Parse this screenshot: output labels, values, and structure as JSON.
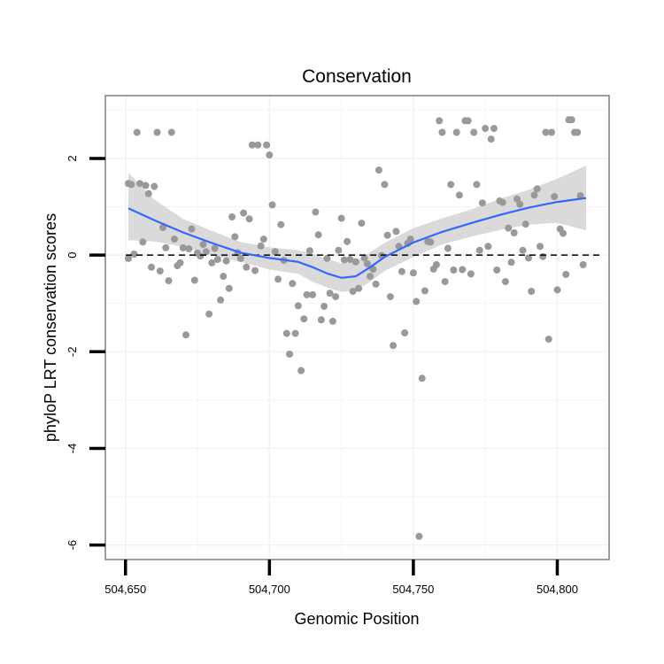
{
  "chart_data": {
    "type": "scatter",
    "title": "Conservation",
    "xlabel": "Genomic Position",
    "ylabel": "phyloP LRT conservation scores",
    "xlim": [
      504643,
      504818
    ],
    "ylim": [
      -6.3,
      3.3
    ],
    "xticks": [
      504650,
      504700,
      504750,
      504800
    ],
    "xtick_labels": [
      "504,650",
      "504,700",
      "504,750",
      "504,800"
    ],
    "yticks": [
      -6,
      -4,
      -2,
      0,
      2
    ],
    "ytick_labels": [
      "-6",
      "-4",
      "-2",
      "0",
      "2"
    ],
    "reference_line": {
      "y": 0,
      "style": "dashed"
    },
    "grid": true,
    "colors": {
      "points": "#999999",
      "smooth_line": "#3366ff",
      "ribbon": "#d3d3d3",
      "panel_border": "#7f7f7f",
      "grid": "#f2f2f2"
    },
    "series": [
      {
        "name": "phyloP",
        "points": [
          {
            "x": 504651,
            "y": -0.07
          },
          {
            "x": 504651,
            "y": 1.48
          },
          {
            "x": 504652,
            "y": 1.46
          },
          {
            "x": 504653,
            "y": 0.02
          },
          {
            "x": 504654,
            "y": 2.54
          },
          {
            "x": 504655,
            "y": 1.48
          },
          {
            "x": 504656,
            "y": 0.27
          },
          {
            "x": 504657,
            "y": 1.44
          },
          {
            "x": 504658,
            "y": 1.27
          },
          {
            "x": 504659,
            "y": -0.25
          },
          {
            "x": 504660,
            "y": 1.42
          },
          {
            "x": 504661,
            "y": 2.54
          },
          {
            "x": 504662,
            "y": -0.33
          },
          {
            "x": 504663,
            "y": 0.57
          },
          {
            "x": 504664,
            "y": 0.15
          },
          {
            "x": 504665,
            "y": -0.53
          },
          {
            "x": 504666,
            "y": 2.54
          },
          {
            "x": 504667,
            "y": 0.33
          },
          {
            "x": 504668,
            "y": -0.22
          },
          {
            "x": 504669,
            "y": -0.16
          },
          {
            "x": 504670,
            "y": 0.15
          },
          {
            "x": 504671,
            "y": -1.65
          },
          {
            "x": 504672,
            "y": 0.13
          },
          {
            "x": 504673,
            "y": 0.54
          },
          {
            "x": 504674,
            "y": -0.52
          },
          {
            "x": 504675,
            "y": 0.04
          },
          {
            "x": 504676,
            "y": -0.02
          },
          {
            "x": 504677,
            "y": 0.22
          },
          {
            "x": 504678,
            "y": 0.07
          },
          {
            "x": 504679,
            "y": -1.22
          },
          {
            "x": 504680,
            "y": -0.16
          },
          {
            "x": 504681,
            "y": 0.14
          },
          {
            "x": 504682,
            "y": -0.09
          },
          {
            "x": 504683,
            "y": -0.93
          },
          {
            "x": 504684,
            "y": -0.44
          },
          {
            "x": 504685,
            "y": -0.12
          },
          {
            "x": 504686,
            "y": -0.69
          },
          {
            "x": 504687,
            "y": 0.79
          },
          {
            "x": 504688,
            "y": 0.38
          },
          {
            "x": 504689,
            "y": 0.05
          },
          {
            "x": 504690,
            "y": -0.07
          },
          {
            "x": 504691,
            "y": 0.87
          },
          {
            "x": 504692,
            "y": -0.25
          },
          {
            "x": 504693,
            "y": 0.75
          },
          {
            "x": 504694,
            "y": 2.28
          },
          {
            "x": 504695,
            "y": -0.32
          },
          {
            "x": 504696,
            "y": 2.28
          },
          {
            "x": 504697,
            "y": 0.19
          },
          {
            "x": 504698,
            "y": 0.33
          },
          {
            "x": 504699,
            "y": 2.28
          },
          {
            "x": 504700,
            "y": 2.07
          },
          {
            "x": 504701,
            "y": 1.04
          },
          {
            "x": 504702,
            "y": 0.07
          },
          {
            "x": 504703,
            "y": -0.5
          },
          {
            "x": 504704,
            "y": 0.63
          },
          {
            "x": 504705,
            "y": -0.11
          },
          {
            "x": 504706,
            "y": -1.62
          },
          {
            "x": 504707,
            "y": -2.05
          },
          {
            "x": 504708,
            "y": -0.59
          },
          {
            "x": 504709,
            "y": -1.62
          },
          {
            "x": 504710,
            "y": -1.05
          },
          {
            "x": 504711,
            "y": -2.39
          },
          {
            "x": 504712,
            "y": -1.32
          },
          {
            "x": 504713,
            "y": -0.82
          },
          {
            "x": 504714,
            "y": 0.09
          },
          {
            "x": 504715,
            "y": -0.82
          },
          {
            "x": 504716,
            "y": 0.89
          },
          {
            "x": 504717,
            "y": 0.42
          },
          {
            "x": 504718,
            "y": -1.34
          },
          {
            "x": 504719,
            "y": -1.06
          },
          {
            "x": 504720,
            "y": -0.07
          },
          {
            "x": 504721,
            "y": -0.79
          },
          {
            "x": 504722,
            "y": -1.37
          },
          {
            "x": 504723,
            "y": -0.86
          },
          {
            "x": 504724,
            "y": 0.1
          },
          {
            "x": 504725,
            "y": 0.76
          },
          {
            "x": 504726,
            "y": -0.1
          },
          {
            "x": 504727,
            "y": 0.28
          },
          {
            "x": 504728,
            "y": -0.09
          },
          {
            "x": 504729,
            "y": -0.75
          },
          {
            "x": 504730,
            "y": -0.14
          },
          {
            "x": 504731,
            "y": -0.69
          },
          {
            "x": 504732,
            "y": 0.66
          },
          {
            "x": 504733,
            "y": -0.06
          },
          {
            "x": 504734,
            "y": -0.18
          },
          {
            "x": 504735,
            "y": -0.44
          },
          {
            "x": 504736,
            "y": -0.29
          },
          {
            "x": 504737,
            "y": -0.6
          },
          {
            "x": 504738,
            "y": 1.76
          },
          {
            "x": 504739,
            "y": -0.01
          },
          {
            "x": 504740,
            "y": 1.46
          },
          {
            "x": 504741,
            "y": 0.41
          },
          {
            "x": 504742,
            "y": -0.86
          },
          {
            "x": 504743,
            "y": -1.87
          },
          {
            "x": 504744,
            "y": 0.49
          },
          {
            "x": 504745,
            "y": 0.18
          },
          {
            "x": 504746,
            "y": -0.34
          },
          {
            "x": 504747,
            "y": -1.61
          },
          {
            "x": 504748,
            "y": 0.24
          },
          {
            "x": 504749,
            "y": 0.33
          },
          {
            "x": 504750,
            "y": -0.37
          },
          {
            "x": 504751,
            "y": -0.96
          },
          {
            "x": 504752,
            "y": -5.82
          },
          {
            "x": 504753,
            "y": -2.55
          },
          {
            "x": 504754,
            "y": -0.74
          },
          {
            "x": 504755,
            "y": 0.28
          },
          {
            "x": 504756,
            "y": 0.27
          },
          {
            "x": 504757,
            "y": -0.29
          },
          {
            "x": 504758,
            "y": -0.2
          },
          {
            "x": 504759,
            "y": 2.78
          },
          {
            "x": 504760,
            "y": 2.54
          },
          {
            "x": 504761,
            "y": -0.55
          },
          {
            "x": 504762,
            "y": 0.14
          },
          {
            "x": 504763,
            "y": 1.46
          },
          {
            "x": 504764,
            "y": -0.31
          },
          {
            "x": 504765,
            "y": 2.54
          },
          {
            "x": 504766,
            "y": 1.24
          },
          {
            "x": 504767,
            "y": -0.3
          },
          {
            "x": 504768,
            "y": 2.78
          },
          {
            "x": 504769,
            "y": 2.78
          },
          {
            "x": 504770,
            "y": -0.39
          },
          {
            "x": 504771,
            "y": 2.54
          },
          {
            "x": 504772,
            "y": 1.46
          },
          {
            "x": 504773,
            "y": 0.1
          },
          {
            "x": 504774,
            "y": 1.08
          },
          {
            "x": 504775,
            "y": 2.62
          },
          {
            "x": 504776,
            "y": 0.18
          },
          {
            "x": 504777,
            "y": 2.4
          },
          {
            "x": 504778,
            "y": 2.62
          },
          {
            "x": 504779,
            "y": -0.31
          },
          {
            "x": 504780,
            "y": 1.12
          },
          {
            "x": 504781,
            "y": 1.09
          },
          {
            "x": 504782,
            "y": -0.55
          },
          {
            "x": 504783,
            "y": 0.56
          },
          {
            "x": 504784,
            "y": -0.15
          },
          {
            "x": 504785,
            "y": 0.46
          },
          {
            "x": 504786,
            "y": 1.16
          },
          {
            "x": 504787,
            "y": 1.05
          },
          {
            "x": 504788,
            "y": 0.1
          },
          {
            "x": 504789,
            "y": 0.64
          },
          {
            "x": 504790,
            "y": -0.06
          },
          {
            "x": 504791,
            "y": -0.75
          },
          {
            "x": 504792,
            "y": 1.24
          },
          {
            "x": 504793,
            "y": 1.37
          },
          {
            "x": 504794,
            "y": 0.18
          },
          {
            "x": 504795,
            "y": -0.03
          },
          {
            "x": 504796,
            "y": 2.54
          },
          {
            "x": 504797,
            "y": -1.74
          },
          {
            "x": 504798,
            "y": 2.54
          },
          {
            "x": 504799,
            "y": 1.21
          },
          {
            "x": 504800,
            "y": -0.72
          },
          {
            "x": 504801,
            "y": 0.54
          },
          {
            "x": 504802,
            "y": 0.45
          },
          {
            "x": 504803,
            "y": -0.4
          },
          {
            "x": 504804,
            "y": 2.8
          },
          {
            "x": 504805,
            "y": 2.8
          },
          {
            "x": 504806,
            "y": 2.54
          },
          {
            "x": 504807,
            "y": 2.54
          },
          {
            "x": 504808,
            "y": 1.23
          },
          {
            "x": 504809,
            "y": -0.2
          }
        ]
      }
    ],
    "smooth": {
      "name": "loess fit",
      "x": [
        504651,
        504660,
        504670,
        504680,
        504690,
        504700,
        504710,
        504715,
        504720,
        504725,
        504730,
        504735,
        504740,
        504750,
        504760,
        504770,
        504780,
        504790,
        504800,
        504810
      ],
      "y": [
        0.97,
        0.72,
        0.47,
        0.25,
        0.05,
        -0.06,
        -0.14,
        -0.25,
        -0.38,
        -0.47,
        -0.44,
        -0.25,
        -0.04,
        0.26,
        0.48,
        0.66,
        0.83,
        0.98,
        1.1,
        1.18
      ],
      "lower": [
        0.31,
        0.28,
        0.17,
        0.0,
        -0.14,
        -0.3,
        -0.39,
        -0.55,
        -0.67,
        -0.76,
        -0.73,
        -0.55,
        -0.33,
        -0.04,
        0.22,
        0.38,
        0.52,
        0.63,
        0.67,
        0.51
      ],
      "upper": [
        1.7,
        1.15,
        0.75,
        0.5,
        0.27,
        0.16,
        0.1,
        0.03,
        -0.08,
        -0.17,
        -0.12,
        0.06,
        0.25,
        0.56,
        0.76,
        0.94,
        1.16,
        1.35,
        1.58,
        1.85
      ]
    }
  }
}
